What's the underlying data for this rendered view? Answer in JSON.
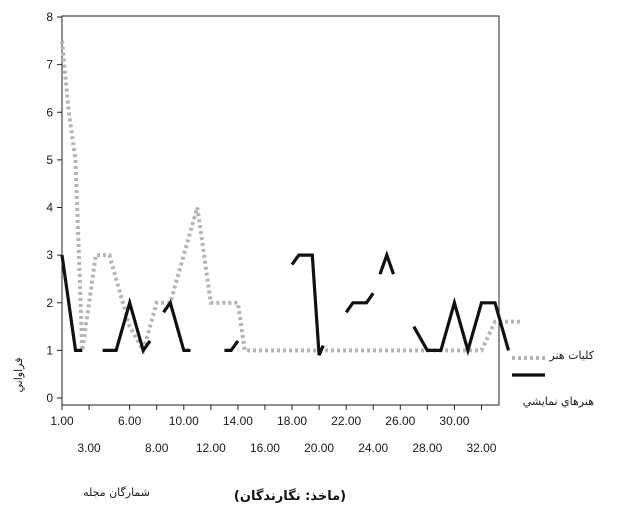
{
  "chart_data": {
    "type": "line",
    "title": "",
    "xlabel": "شمارگان مجله",
    "ylabel": "فراواني",
    "source_note": "(ماخذ: نگارندگان)",
    "xlim": [
      1,
      33
    ],
    "ylim": [
      0,
      8
    ],
    "y_ticks": [
      0,
      1,
      2,
      3,
      4,
      5,
      6,
      7,
      8
    ],
    "x_ticks_top": [
      "1.00",
      "6.00",
      "10.00",
      "14.00",
      "18.00",
      "22.00",
      "26.00",
      "30.00"
    ],
    "x_ticks_top_values": [
      1,
      6,
      10,
      14,
      18,
      22,
      26,
      30
    ],
    "x_ticks_bottom": [
      "3.00",
      "8.00",
      "12.00",
      "16.00",
      "20.00",
      "24.00",
      "28.00",
      "32.00"
    ],
    "x_ticks_bottom_values": [
      3,
      8,
      12,
      16,
      20,
      24,
      28,
      32
    ],
    "legend_placement": "right",
    "series": [
      {
        "name": "كليات هنر",
        "style": "dotted",
        "color": "#b5b5b5",
        "points": [
          [
            1,
            7.5
          ],
          [
            1.5,
            6
          ],
          [
            2,
            5
          ],
          [
            2.5,
            1
          ],
          [
            3,
            2
          ],
          [
            3.5,
            3
          ],
          [
            4,
            3
          ],
          [
            4.5,
            3
          ],
          [
            5,
            2.5
          ],
          [
            6,
            1.5
          ],
          [
            7,
            1
          ],
          [
            7.5,
            1.5
          ],
          [
            8,
            2
          ],
          [
            8.5,
            2
          ],
          [
            9,
            2
          ],
          [
            9.5,
            2.5
          ],
          [
            10,
            3
          ],
          [
            10.5,
            3.5
          ],
          [
            11,
            4
          ],
          [
            11.5,
            3
          ],
          [
            12,
            2
          ],
          [
            13,
            2
          ],
          [
            14,
            2
          ],
          [
            14.5,
            1
          ],
          [
            15,
            1
          ],
          [
            16,
            1
          ],
          [
            17,
            1
          ],
          [
            18,
            1
          ],
          [
            19,
            1
          ],
          [
            20,
            1
          ],
          [
            21,
            1
          ],
          [
            22,
            1
          ],
          [
            23,
            1
          ],
          [
            24,
            1
          ],
          [
            25,
            1
          ],
          [
            26,
            1
          ],
          [
            27,
            1
          ],
          [
            28,
            1
          ],
          [
            29,
            1
          ],
          [
            30,
            1
          ],
          [
            31,
            1
          ],
          [
            32,
            1
          ],
          [
            33,
            1.6
          ],
          [
            35,
            1.6
          ]
        ]
      },
      {
        "name": "هنرهاي نمايشي",
        "style": "solid",
        "color": "#111111",
        "segments": [
          [
            [
              1,
              3
            ],
            [
              2,
              1
            ],
            [
              2.5,
              1
            ]
          ],
          [
            [
              4,
              1
            ],
            [
              5,
              1
            ],
            [
              6,
              2
            ],
            [
              7,
              1
            ],
            [
              7.5,
              1.2
            ]
          ],
          [
            [
              8.5,
              1.8
            ],
            [
              9,
              2
            ],
            [
              10,
              1
            ],
            [
              10.5,
              1
            ]
          ],
          [
            [
              13,
              1
            ],
            [
              13.5,
              1
            ],
            [
              14,
              1.2
            ]
          ],
          [
            [
              18,
              2.8
            ],
            [
              18.5,
              3
            ],
            [
              19.5,
              3
            ],
            [
              20,
              0.9
            ],
            [
              20.3,
              1.1
            ]
          ],
          [
            [
              22,
              1.8
            ],
            [
              22.5,
              2
            ],
            [
              23.5,
              2
            ],
            [
              24,
              2.2
            ]
          ],
          [
            [
              24.5,
              2.6
            ],
            [
              25,
              3
            ],
            [
              25.5,
              2.6
            ]
          ],
          [
            [
              27,
              1.5
            ],
            [
              28,
              1
            ],
            [
              29,
              1
            ],
            [
              30,
              2
            ],
            [
              31,
              1
            ],
            [
              32,
              2
            ],
            [
              33,
              2
            ],
            [
              34,
              1
            ]
          ]
        ]
      }
    ]
  }
}
